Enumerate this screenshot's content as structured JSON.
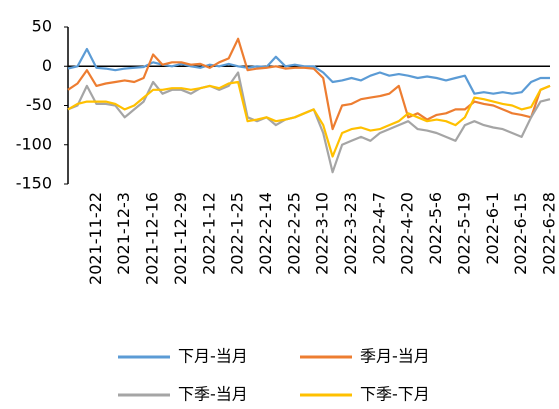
{
  "chart_data": {
    "type": "line",
    "categories": [
      null,
      null,
      null,
      "2021-11-22",
      null,
      null,
      "2021-12-3",
      null,
      null,
      "2021-12-16",
      null,
      null,
      "2021-12-29",
      null,
      null,
      "2022-1-12",
      null,
      null,
      "2022-1-25",
      null,
      null,
      "2022-2-14",
      null,
      null,
      "2022-2-25",
      null,
      null,
      "2022-3-10",
      null,
      null,
      "2022-3-23",
      null,
      null,
      "2022-4-7",
      null,
      null,
      "2022-4-20",
      null,
      null,
      "2022-5-6",
      null,
      null,
      "2022-5-19",
      null,
      null,
      "2022-6-1",
      null,
      null,
      "2022-6-15",
      null,
      null,
      "2022-6-28"
    ],
    "series": [
      {
        "name": "下月-当月",
        "color": "#5b9bd5",
        "values": [
          -3,
          0,
          22,
          -2,
          -3,
          -5,
          -3,
          -2,
          -1,
          5,
          2,
          0,
          3,
          0,
          -2,
          2,
          0,
          3,
          0,
          -2,
          0,
          -1,
          12,
          0,
          2,
          0,
          0,
          -8,
          -20,
          -18,
          -15,
          -18,
          -12,
          -8,
          -12,
          -10,
          -12,
          -15,
          -13,
          -15,
          -18,
          -15,
          -12,
          -35,
          -33,
          -35,
          -33,
          -35,
          -33,
          -20,
          -15,
          -15
        ]
      },
      {
        "name": "季月-当月",
        "color": "#ed7d31",
        "values": [
          -30,
          -22,
          -5,
          -25,
          -22,
          -20,
          -18,
          -20,
          -15,
          15,
          2,
          5,
          5,
          2,
          3,
          -2,
          5,
          10,
          35,
          -5,
          -3,
          -2,
          0,
          -3,
          -2,
          -2,
          -3,
          -15,
          -80,
          -50,
          -48,
          -42,
          -40,
          -38,
          -35,
          -25,
          -65,
          -60,
          -68,
          -62,
          -60,
          -55,
          -55,
          -45,
          -48,
          -50,
          -55,
          -60,
          -62,
          -65,
          -30,
          -25
        ]
      },
      {
        "name": "下季-当月",
        "color": "#a5a5a5",
        "values": [
          -55,
          -50,
          -25,
          -48,
          -48,
          -50,
          -65,
          -55,
          -45,
          -20,
          -35,
          -30,
          -30,
          -35,
          -28,
          -25,
          -30,
          -25,
          -8,
          -65,
          -70,
          -65,
          -75,
          -68,
          -65,
          -60,
          -55,
          -85,
          -135,
          -100,
          -95,
          -90,
          -95,
          -85,
          -80,
          -75,
          -70,
          -80,
          -82,
          -85,
          -90,
          -95,
          -75,
          -70,
          -75,
          -78,
          -80,
          -85,
          -90,
          -65,
          -45,
          -42
        ]
      },
      {
        "name": "下季-下月",
        "color": "#ffc000",
        "values": [
          -55,
          -48,
          -45,
          -45,
          -45,
          -48,
          -55,
          -50,
          -40,
          -30,
          -30,
          -28,
          -28,
          -30,
          -28,
          -25,
          -28,
          -22,
          -20,
          -70,
          -68,
          -65,
          -70,
          -68,
          -65,
          -60,
          -55,
          -75,
          -115,
          -85,
          -80,
          -78,
          -82,
          -80,
          -75,
          -70,
          -60,
          -65,
          -70,
          -68,
          -70,
          -75,
          -65,
          -40,
          -42,
          -45,
          -48,
          -50,
          -55,
          -52,
          -30,
          -25
        ]
      }
    ],
    "ylim": [
      -150,
      50
    ],
    "yticks": [
      -150,
      -100,
      -50,
      0,
      50
    ]
  }
}
